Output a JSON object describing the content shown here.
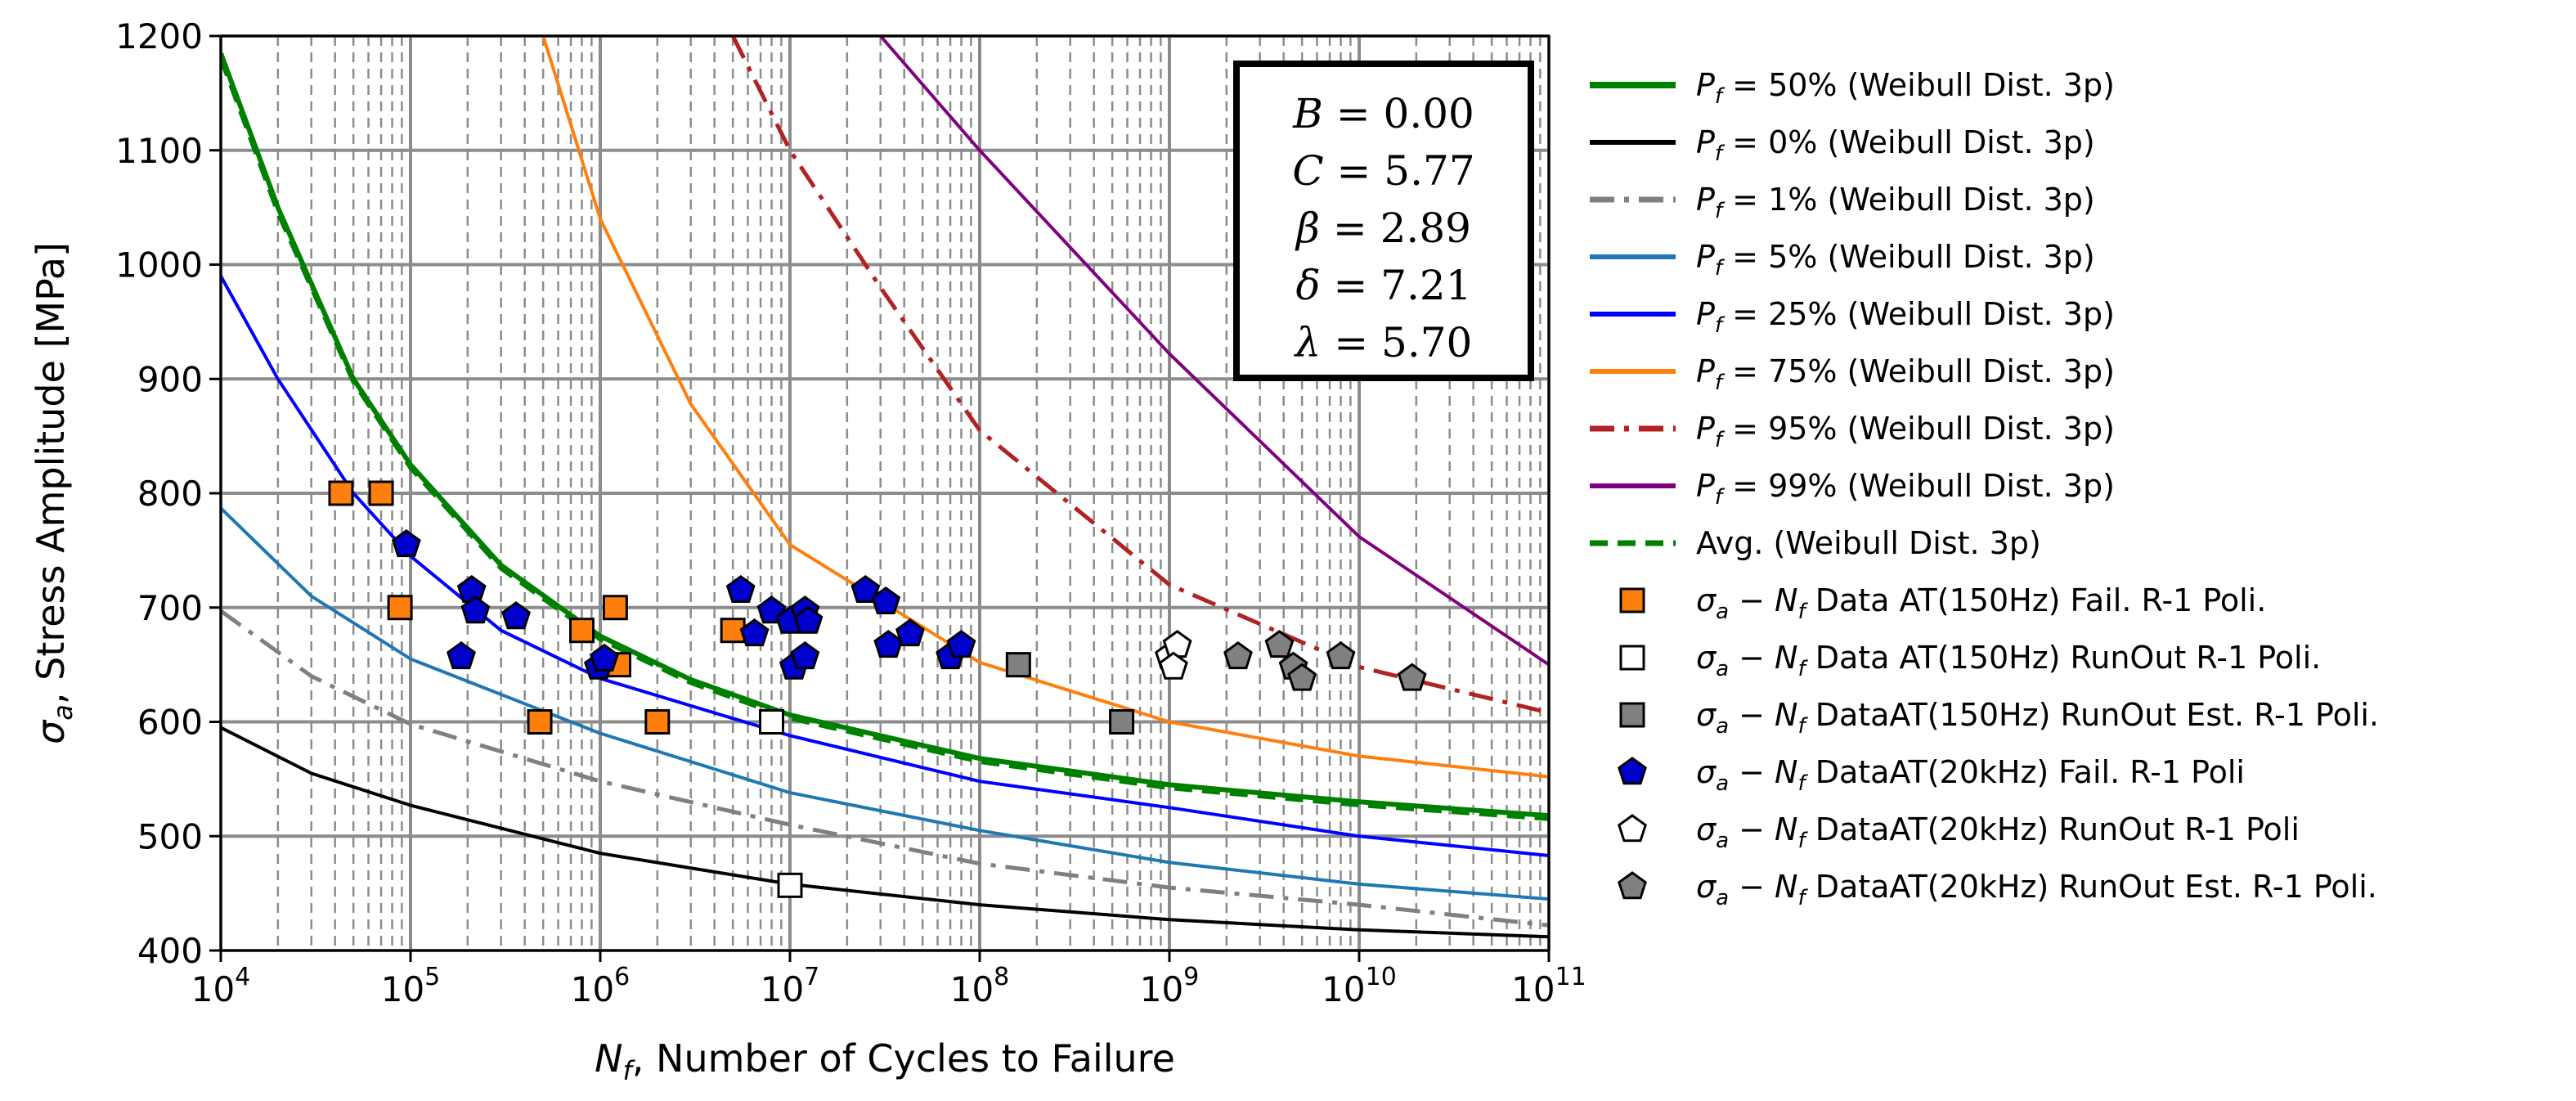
{
  "chart_data": {
    "type": "line",
    "xscale": "log",
    "xlim": [
      10000,
      100000000000
    ],
    "ylim": [
      400,
      1200
    ],
    "x_ticks": [
      10000,
      100000,
      1000000,
      10000000,
      100000000,
      1000000000,
      10000000000,
      100000000000
    ],
    "x_tick_labels": [
      {
        "base": "10",
        "exp": "4"
      },
      {
        "base": "10",
        "exp": "5"
      },
      {
        "base": "10",
        "exp": "6"
      },
      {
        "base": "10",
        "exp": "7"
      },
      {
        "base": "10",
        "exp": "8"
      },
      {
        "base": "10",
        "exp": "9"
      },
      {
        "base": "10",
        "exp": "10"
      },
      {
        "base": "10",
        "exp": "11"
      }
    ],
    "y_ticks": [
      400,
      500,
      600,
      700,
      800,
      900,
      1000,
      1100,
      1200
    ],
    "y_tick_labels": [
      "400",
      "500",
      "600",
      "700",
      "800",
      "900",
      "1000",
      "1100",
      "1200"
    ],
    "xlabel": {
      "sym": "N",
      "sub": "f",
      "rest": ", Number of Cycles to Failure"
    },
    "ylabel": {
      "sym": "σ",
      "sub": "a",
      "rest": ", Stress Amplitude [MPa]"
    },
    "grid": true,
    "legend_position": "outside-right",
    "parameters": [
      {
        "name": "B",
        "sep": " = ",
        "value": "0.00"
      },
      {
        "name": "C",
        "sep": " = ",
        "value": "5.77"
      },
      {
        "name": "β",
        "sep": " =  ",
        "value": "2.89"
      },
      {
        "name": "δ",
        "sep": " =  ",
        "value": "7.21"
      },
      {
        "name": "λ",
        "sep": " =  ",
        "value": "5.70"
      }
    ],
    "lines": [
      {
        "id": "p50",
        "sym": "P",
        "sub": "f",
        "label": " = 50% (Weibull Dist. 3p)",
        "color": "#008000",
        "style": "solid",
        "width": 6,
        "points": [
          [
            10000,
            1185
          ],
          [
            20000,
            1050
          ],
          [
            50000,
            900
          ],
          [
            100000,
            825
          ],
          [
            300000,
            737
          ],
          [
            1000000,
            675
          ],
          [
            3000000,
            637
          ],
          [
            10000000,
            606
          ],
          [
            100000000,
            568
          ],
          [
            1000000000,
            545
          ],
          [
            10000000000,
            530
          ],
          [
            100000000000,
            518
          ]
        ]
      },
      {
        "id": "p0",
        "sym": "P",
        "sub": "f",
        "label": " = 0% (Weibull Dist. 3p)",
        "color": "#000000",
        "style": "solid",
        "width": 4,
        "points": [
          [
            10000,
            595
          ],
          [
            30000,
            555
          ],
          [
            100000,
            527
          ],
          [
            1000000,
            485
          ],
          [
            10000000,
            458
          ],
          [
            100000000,
            440
          ],
          [
            1000000000,
            427
          ],
          [
            10000000000,
            418
          ],
          [
            100000000000,
            412
          ]
        ]
      },
      {
        "id": "p1",
        "sym": "P",
        "sub": "f",
        "label": " = 1% (Weibull Dist. 3p)",
        "color": "#808080",
        "style": "dashdot",
        "width": 5,
        "points": [
          [
            10000,
            697
          ],
          [
            30000,
            640
          ],
          [
            100000,
            598
          ],
          [
            1000000,
            548
          ],
          [
            10000000,
            510
          ],
          [
            100000000,
            476
          ],
          [
            1000000000,
            455
          ],
          [
            10000000000,
            440
          ],
          [
            100000000000,
            422
          ]
        ]
      },
      {
        "id": "p5",
        "sym": "P",
        "sub": "f",
        "label": " = 5% (Weibull Dist. 3p)",
        "color": "#1f77b4",
        "style": "solid",
        "width": 4,
        "points": [
          [
            10000,
            787
          ],
          [
            30000,
            710
          ],
          [
            100000,
            655
          ],
          [
            1000000,
            590
          ],
          [
            10000000,
            538
          ],
          [
            100000000,
            505
          ],
          [
            1000000000,
            477
          ],
          [
            10000000000,
            458
          ],
          [
            100000000000,
            445
          ]
        ]
      },
      {
        "id": "p25",
        "sym": "P",
        "sub": "f",
        "label": " = 25% (Weibull Dist. 3p)",
        "color": "#0000ff",
        "style": "solid",
        "width": 4,
        "points": [
          [
            10000,
            990
          ],
          [
            20000,
            900
          ],
          [
            50000,
            800
          ],
          [
            100000,
            745
          ],
          [
            300000,
            680
          ],
          [
            1000000,
            638
          ],
          [
            10000000,
            588
          ],
          [
            100000000,
            548
          ],
          [
            1000000000,
            525
          ],
          [
            10000000000,
            500
          ],
          [
            100000000000,
            483
          ]
        ]
      },
      {
        "id": "p75",
        "sym": "P",
        "sub": "f",
        "label": " = 75% (Weibull Dist. 3p)",
        "color": "#ff7f0e",
        "style": "solid",
        "width": 4,
        "points": [
          [
            500000,
            1200
          ],
          [
            1000000,
            1040
          ],
          [
            3000000,
            878
          ],
          [
            10000000,
            755
          ],
          [
            100000000,
            652
          ],
          [
            1000000000,
            600
          ],
          [
            10000000000,
            570
          ],
          [
            100000000000,
            552
          ]
        ]
      },
      {
        "id": "p95",
        "sym": "P",
        "sub": "f",
        "label": " = 95% (Weibull Dist. 3p)",
        "color": "#b22222",
        "style": "dashdot",
        "width": 5,
        "points": [
          [
            5000000,
            1200
          ],
          [
            10000000,
            1100
          ],
          [
            30000000,
            980
          ],
          [
            100000000,
            855
          ],
          [
            1000000000,
            720
          ],
          [
            10000000000,
            648
          ],
          [
            100000000000,
            608
          ]
        ]
      },
      {
        "id": "p99",
        "sym": "P",
        "sub": "f",
        "label": " = 99% (Weibull Dist. 3p)",
        "color": "#800080",
        "style": "solid",
        "width": 4,
        "points": [
          [
            30000000,
            1200
          ],
          [
            100000000,
            1100
          ],
          [
            1000000000,
            922
          ],
          [
            10000000000,
            762
          ],
          [
            100000000000,
            650
          ]
        ]
      },
      {
        "id": "avg",
        "sym": "",
        "sub": "",
        "label": "Avg. (Weibull Dist. 3p)",
        "color": "#008000",
        "style": "dashed",
        "width": 5,
        "points": [
          [
            10000,
            1180
          ],
          [
            20000,
            1045
          ],
          [
            50000,
            897
          ],
          [
            100000,
            822
          ],
          [
            300000,
            734
          ],
          [
            1000000,
            672
          ],
          [
            3000000,
            634
          ],
          [
            10000000,
            603
          ],
          [
            100000000,
            565
          ],
          [
            1000000000,
            542
          ],
          [
            10000000000,
            527
          ],
          [
            100000000000,
            515
          ]
        ]
      }
    ],
    "scatter": [
      {
        "id": "s1",
        "marker": "square",
        "fill": "#ff7f0e",
        "stroke": "#000000",
        "sym": "σ",
        "sub": "a",
        "mid": " − ",
        "sym2": "N",
        "sub2": "f",
        "label": " Data AT(150Hz) Fail. R-1 Poli.",
        "points": [
          [
            43000,
            800
          ],
          [
            70000,
            800
          ],
          [
            88000,
            700
          ],
          [
            480000,
            600
          ],
          [
            800000,
            680
          ],
          [
            1200000,
            700
          ],
          [
            1250000,
            650
          ],
          [
            2000000,
            600
          ],
          [
            5000000,
            680
          ]
        ]
      },
      {
        "id": "s2",
        "marker": "square",
        "fill": "#ffffff",
        "stroke": "#000000",
        "sym": "σ",
        "sub": "a",
        "mid": " − ",
        "sym2": "N",
        "sub2": "f",
        "label": " Data AT(150Hz) RunOut  R-1 Poli.",
        "points": [
          [
            8000000,
            600
          ],
          [
            10000000,
            457
          ]
        ]
      },
      {
        "id": "s3",
        "marker": "square",
        "fill": "#808080",
        "stroke": "#000000",
        "sym": "σ",
        "sub": "a",
        "mid": " − ",
        "sym2": "N",
        "sub2": "f",
        "label": " DataAT(150Hz) RunOut Est. R-1 Poli.",
        "points": [
          [
            160000000,
            650
          ],
          [
            560000000,
            600
          ]
        ]
      },
      {
        "id": "s4",
        "marker": "pentagon",
        "fill": "#0000cd",
        "stroke": "#000000",
        "sym": "σ",
        "sub": "a",
        "mid": " − ",
        "sym2": "N",
        "sub2": "f",
        "label": " DataAT(20kHz) Fail. R-1 Poli",
        "points": [
          [
            95000,
            755
          ],
          [
            210000,
            715
          ],
          [
            220000,
            697
          ],
          [
            360000,
            692
          ],
          [
            185000,
            657
          ],
          [
            980000,
            648
          ],
          [
            1050000,
            655
          ],
          [
            5500000,
            715
          ],
          [
            6500000,
            677
          ],
          [
            8000000,
            697
          ],
          [
            10000000,
            688
          ],
          [
            10500000,
            648
          ],
          [
            12000000,
            697
          ],
          [
            12500000,
            688
          ],
          [
            12000000,
            657
          ],
          [
            25000000,
            715
          ],
          [
            32000000,
            705
          ],
          [
            33000000,
            667
          ],
          [
            43000000,
            677
          ],
          [
            70000000,
            657
          ],
          [
            80000000,
            667
          ]
        ]
      },
      {
        "id": "s5",
        "marker": "pentagon",
        "fill": "#ffffff",
        "stroke": "#000000",
        "sym": "σ",
        "sub": "a",
        "mid": " − ",
        "sym2": "N",
        "sub2": "f",
        "label": " DataAT(20kHz) RunOut  R-1 Poli",
        "points": [
          [
            1000000000,
            657
          ],
          [
            1100000000,
            667
          ],
          [
            1050000000,
            648
          ]
        ]
      },
      {
        "id": "s6",
        "marker": "pentagon",
        "fill": "#808080",
        "stroke": "#000000",
        "sym": "σ",
        "sub": "a",
        "mid": " − ",
        "sym2": "N",
        "sub2": "f",
        "label": " DataAT(20kHz) RunOut Est. R-1 Poli.",
        "points": [
          [
            2300000000,
            657
          ],
          [
            3800000000,
            667
          ],
          [
            4500000000,
            648
          ],
          [
            5000000000,
            638
          ],
          [
            8000000000,
            657
          ],
          [
            19000000000,
            638
          ]
        ]
      }
    ]
  }
}
